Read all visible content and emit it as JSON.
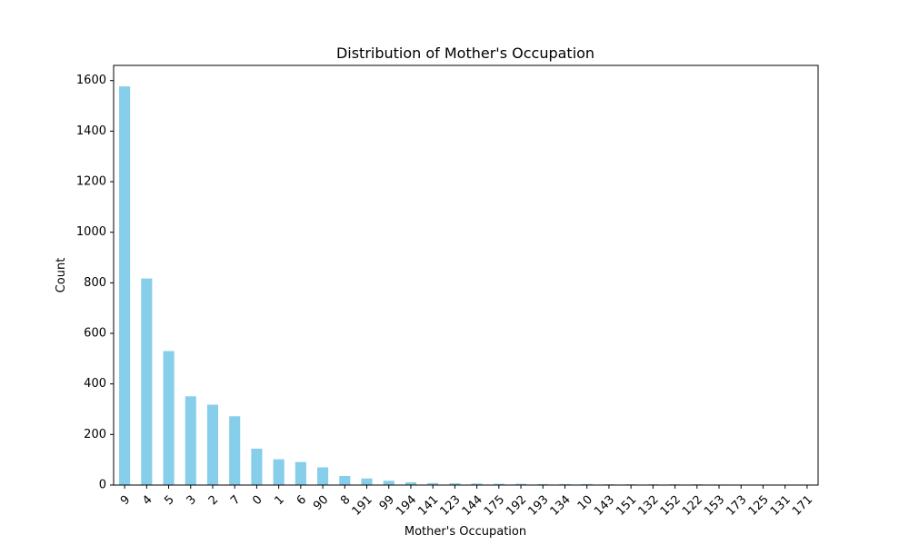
{
  "chart_data": {
    "type": "bar",
    "title": "Distribution of Mother's Occupation",
    "xlabel": "Mother's Occupation",
    "ylabel": "Count",
    "ylim": [
      0,
      1660
    ],
    "yticks": [
      0,
      200,
      400,
      600,
      800,
      1000,
      1200,
      1400,
      1600
    ],
    "categories": [
      "9",
      "4",
      "5",
      "3",
      "2",
      "7",
      "0",
      "1",
      "6",
      "90",
      "8",
      "191",
      "99",
      "194",
      "141",
      "123",
      "144",
      "175",
      "192",
      "193",
      "134",
      "10",
      "143",
      "151",
      "132",
      "152",
      "122",
      "153",
      "173",
      "125",
      "131",
      "171"
    ],
    "values": [
      1577,
      817,
      530,
      351,
      318,
      272,
      144,
      102,
      91,
      70,
      36,
      26,
      17,
      11,
      8,
      7,
      6,
      5,
      5,
      4,
      4,
      4,
      3,
      3,
      3,
      3,
      3,
      2,
      1,
      1,
      1,
      1
    ],
    "bar_color": "#87ceeb",
    "grid": false,
    "legend": false
  }
}
